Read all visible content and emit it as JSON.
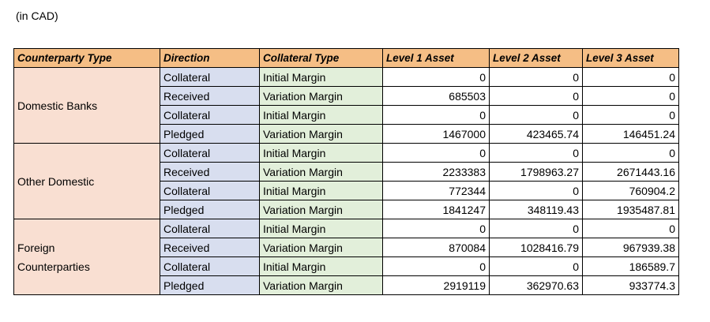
{
  "caption": "(in CAD)",
  "headers": [
    "Counterparty Type",
    "Direction",
    "Collateral Type",
    "Level 1 Asset",
    "Level 2 Asset",
    "Level 3 Asset"
  ],
  "groups": [
    {
      "counterparty": [
        "Domestic Banks"
      ],
      "rows": [
        {
          "direction": "Collateral",
          "type": "Initial Margin",
          "l1": "0",
          "l2": "0",
          "l3": "0"
        },
        {
          "direction": "Received",
          "type": "Variation Margin",
          "l1": "685503",
          "l2": "0",
          "l3": "0"
        },
        {
          "direction": "Collateral",
          "type": "Initial Margin",
          "l1": "0",
          "l2": "0",
          "l3": "0"
        },
        {
          "direction": "Pledged",
          "type": "Variation Margin",
          "l1": "1467000",
          "l2": "423465.74",
          "l3": "146451.24"
        }
      ]
    },
    {
      "counterparty": [
        "Other Domestic"
      ],
      "rows": [
        {
          "direction": "Collateral",
          "type": "Initial Margin",
          "l1": "0",
          "l2": "0",
          "l3": "0"
        },
        {
          "direction": "Received",
          "type": "Variation Margin",
          "l1": "2233383",
          "l2": "1798963.27",
          "l3": "2671443.16"
        },
        {
          "direction": "Collateral",
          "type": "Initial Margin",
          "l1": "772344",
          "l2": "0",
          "l3": "760904.2"
        },
        {
          "direction": "Pledged",
          "type": "Variation Margin",
          "l1": "1841247",
          "l2": "348119.43",
          "l3": "1935487.81"
        }
      ]
    },
    {
      "counterparty": [
        "Foreign",
        "Counterparties"
      ],
      "rows": [
        {
          "direction": "Collateral",
          "type": "Initial Margin",
          "l1": "0",
          "l2": "0",
          "l3": "0"
        },
        {
          "direction": "Received",
          "type": "Variation Margin",
          "l1": "870084",
          "l2": "1028416.79",
          "l3": "967939.38"
        },
        {
          "direction": "Collateral",
          "type": "Initial Margin",
          "l1": "0",
          "l2": "0",
          "l3": "186589.7"
        },
        {
          "direction": "Pledged",
          "type": "Variation Margin",
          "l1": "2919119",
          "l2": "362970.63",
          "l3": "933774.3"
        }
      ]
    }
  ],
  "colors": {
    "header": "#f5be85",
    "counterparty": "#f9dfd2",
    "direction": "#d8deef",
    "collateral_type": "#e2efda"
  }
}
